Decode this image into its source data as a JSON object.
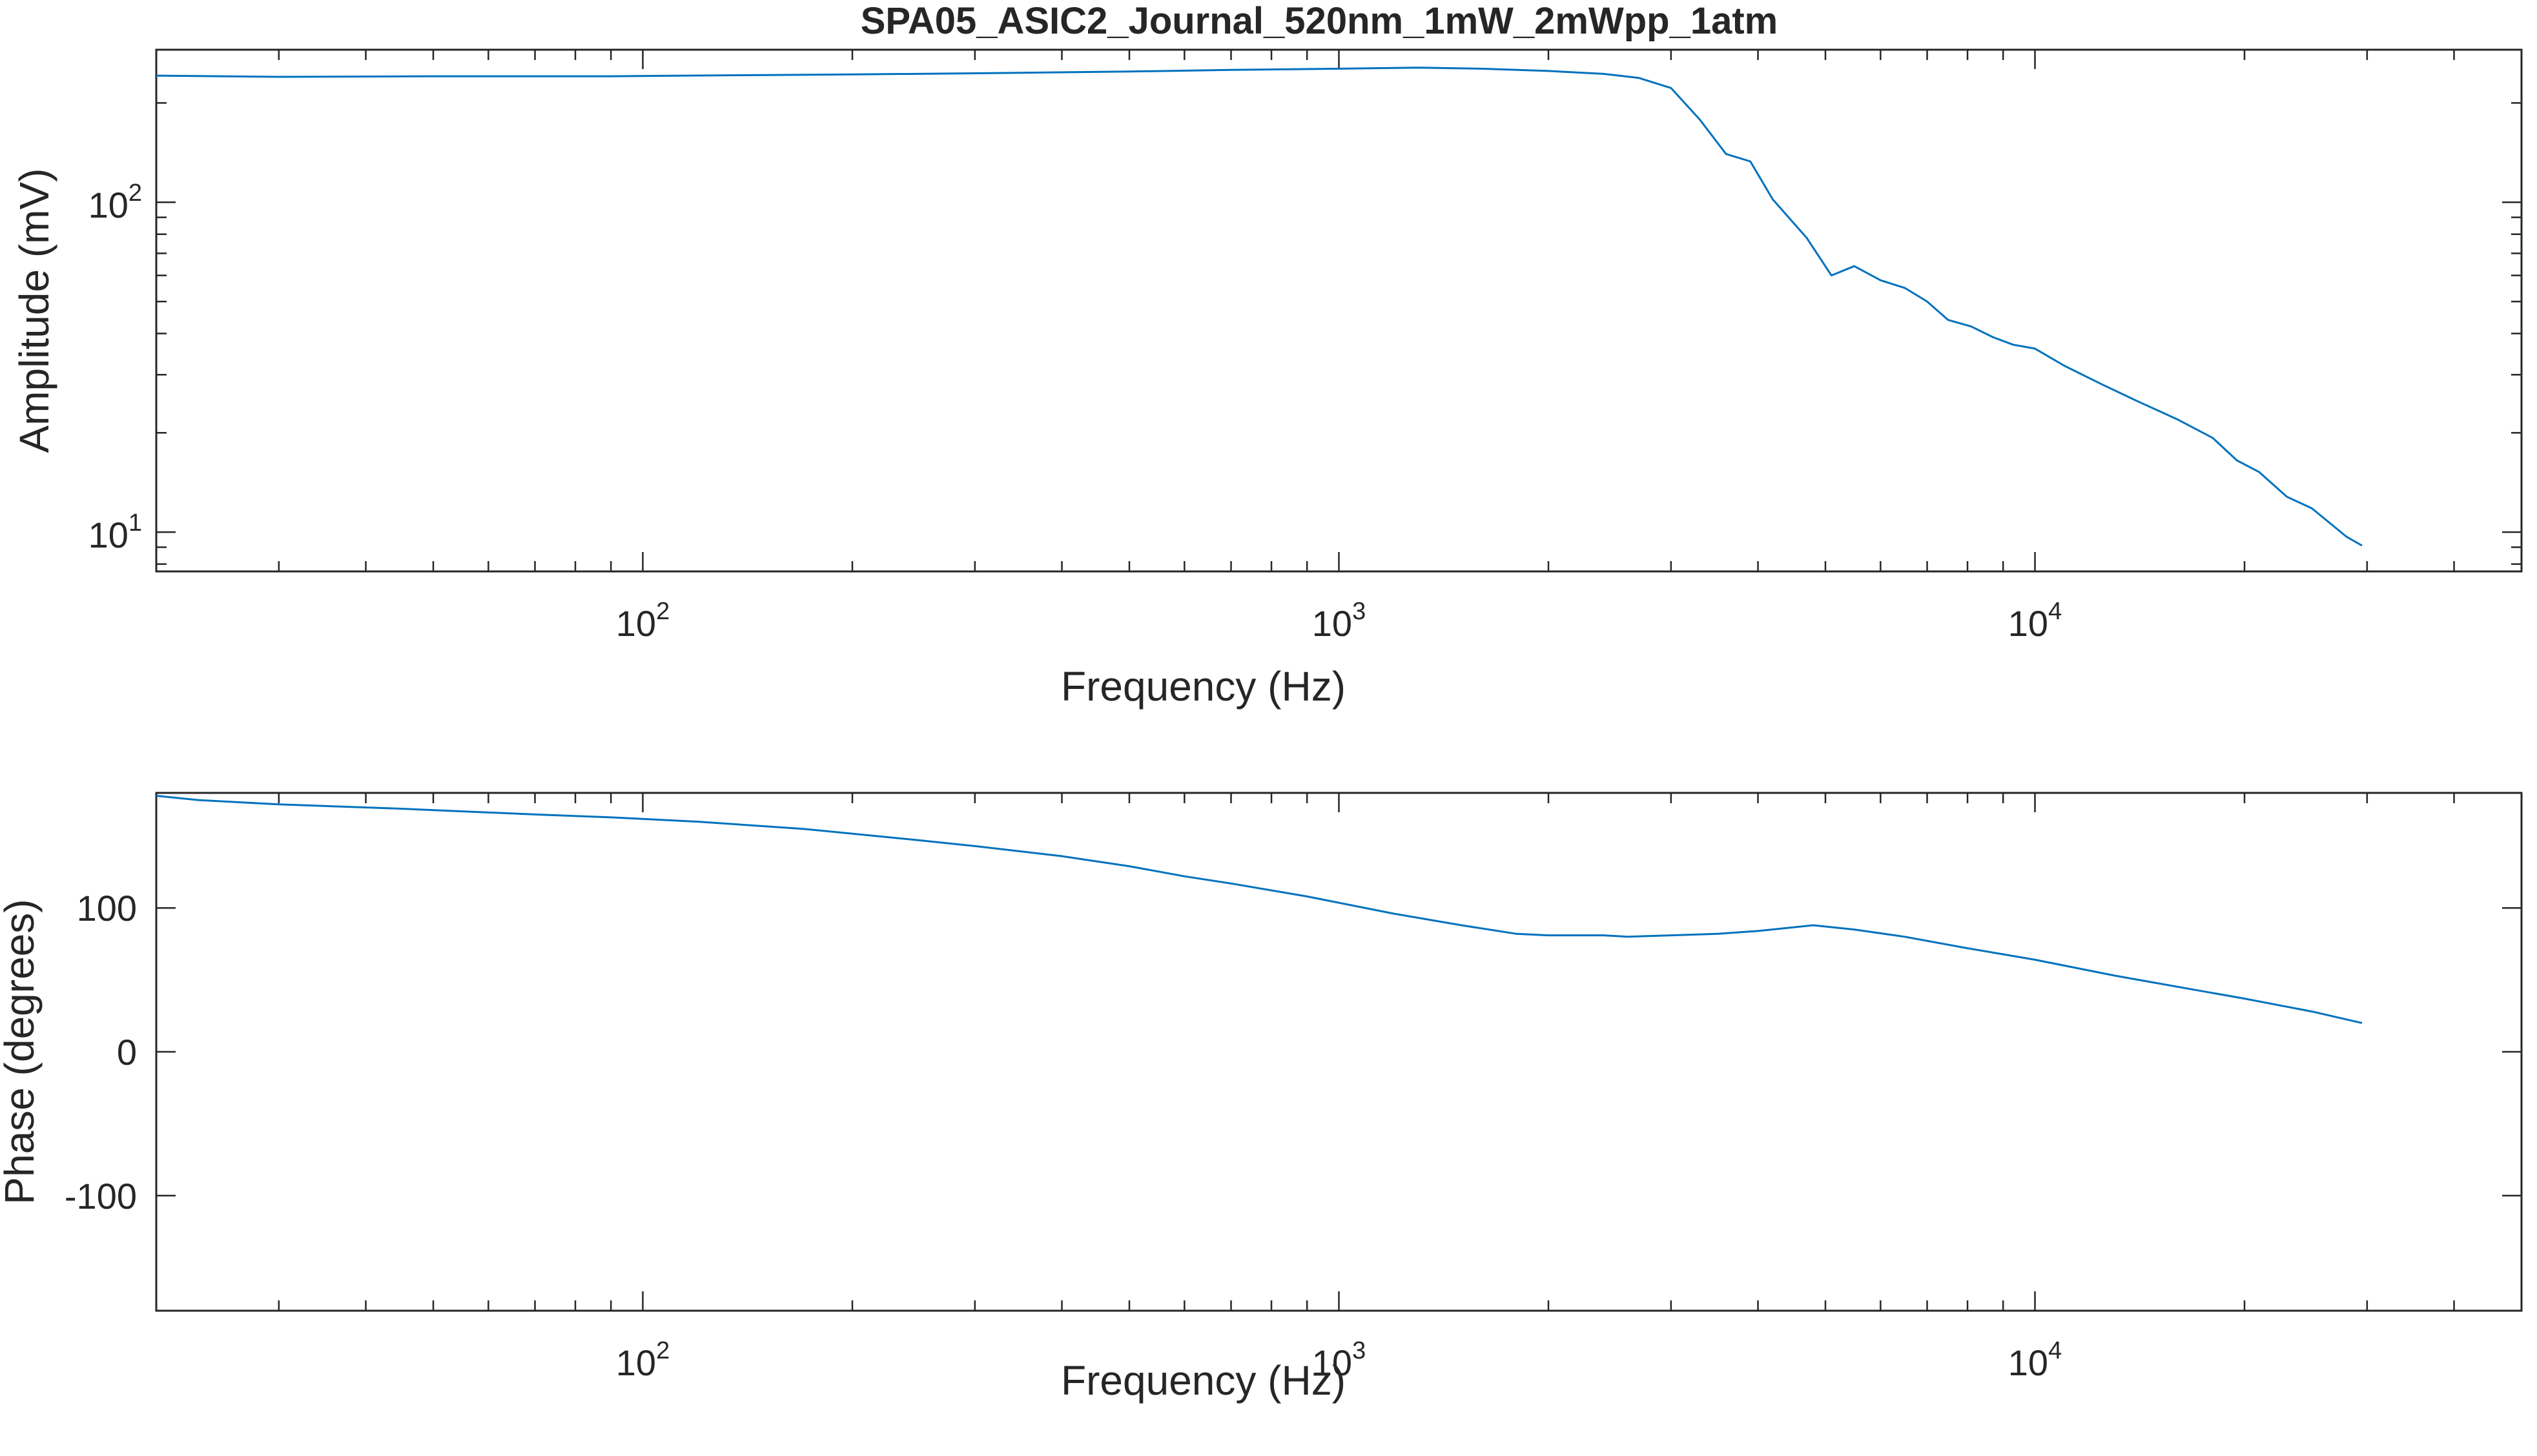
{
  "chart_data": [
    {
      "type": "line",
      "title": "SPA05_ASIC2_Journal_520nm_1mW_2mWpp_1atm",
      "xlabel": "Frequency (Hz)",
      "ylabel": "Amplitude (mV)",
      "xscale": "log",
      "yscale": "log",
      "xlim": [
        20,
        50000
      ],
      "ylim": [
        7.6,
        290
      ],
      "xticks": [
        100,
        1000,
        10000
      ],
      "xtick_labels": [
        {
          "base": "10",
          "exp": "2"
        },
        {
          "base": "10",
          "exp": "3"
        },
        {
          "base": "10",
          "exp": "4"
        }
      ],
      "yticks": [
        10,
        100
      ],
      "ytick_labels": [
        {
          "base": "10",
          "exp": "1"
        },
        {
          "base": "10",
          "exp": "2"
        }
      ],
      "grid": false,
      "line_color": "#0072BD",
      "series": [
        {
          "x": [
            20,
            30,
            50,
            70,
            90,
            150,
            200,
            300,
            500,
            700,
            1000,
            1300,
            1600,
            2000,
            2400,
            2700,
            3000,
            3300,
            3600,
            3900,
            4200,
            4700,
            5100,
            5500,
            6000,
            6500,
            7000,
            7500,
            8100,
            8700,
            9300,
            10000,
            11000,
            12500,
            14000,
            16000,
            18000,
            19500,
            21000,
            23000,
            25000,
            28000,
            29500
          ],
          "y": [
            242,
            240,
            241,
            241,
            241,
            243,
            244,
            246,
            249,
            252,
            254,
            256,
            254,
            250,
            245,
            238,
            222,
            178,
            140,
            133,
            102,
            78,
            60,
            64,
            58,
            55,
            50,
            44,
            42,
            39,
            37,
            36,
            32,
            28,
            25,
            22,
            19.3,
            16.5,
            15.2,
            12.8,
            11.8,
            9.7,
            9.1
          ]
        }
      ]
    },
    {
      "type": "line",
      "xlabel": "Frequency (Hz)",
      "ylabel": "Phase (degrees)",
      "xscale": "log",
      "yscale": "linear",
      "xlim": [
        20,
        50000
      ],
      "ylim": [
        -180,
        180
      ],
      "xticks": [
        100,
        1000,
        10000
      ],
      "xtick_labels": [
        {
          "base": "10",
          "exp": "2"
        },
        {
          "base": "10",
          "exp": "3"
        },
        {
          "base": "10",
          "exp": "4"
        }
      ],
      "yticks": [
        -100,
        0,
        100
      ],
      "ytick_labels": [
        "-100",
        "0",
        "100"
      ],
      "grid": false,
      "line_color": "#0072BD",
      "series": [
        {
          "x": [
            20,
            23,
            30,
            45,
            70,
            90,
            120,
            170,
            250,
            300,
            400,
            500,
            600,
            700,
            900,
            1200,
            1500,
            1800,
            2000,
            2400,
            2600,
            3000,
            3500,
            4000,
            4800,
            5500,
            6500,
            8000,
            10000,
            13000,
            17000,
            20000,
            25000,
            29500
          ],
          "y": [
            178,
            175,
            172,
            169,
            165,
            163,
            160,
            155,
            147,
            143,
            136,
            129,
            122,
            117,
            108,
            96,
            88,
            82,
            81,
            81,
            80,
            81,
            82,
            84,
            88,
            85,
            80,
            72,
            64,
            53,
            43,
            37,
            28,
            20
          ]
        }
      ]
    }
  ]
}
